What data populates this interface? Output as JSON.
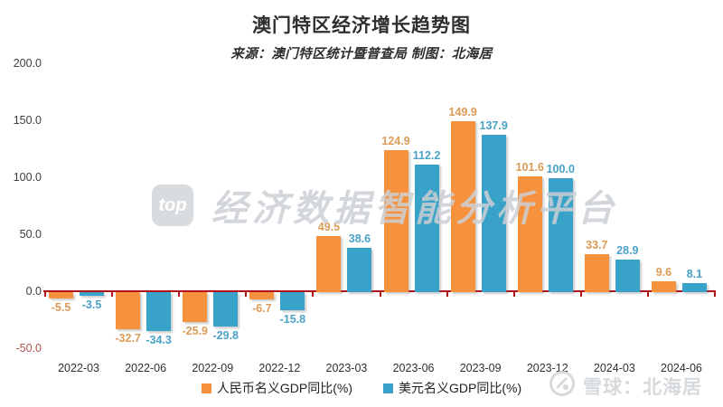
{
  "header": {
    "title": "澳门特区经济增长趋势图",
    "subtitle": "来源：澳门特区统计暨普查局 制图：北海居"
  },
  "chart_data": {
    "type": "bar",
    "title": "澳门特区经济增长趋势图",
    "subtitle": "来源：澳门特区统计暨普查局 制图：北海居",
    "categories": [
      "2022-03",
      "2022-06",
      "2022-09",
      "2022-12",
      "2023-03",
      "2023-06",
      "2023-09",
      "2023-12",
      "2024-03",
      "2024-06"
    ],
    "series": [
      {
        "name": "人民币名义GDP同比(%)",
        "color": "#f6913d",
        "label_color": "#db9b57",
        "values": [
          -5.5,
          -32.7,
          -25.9,
          -6.7,
          49.5,
          124.9,
          149.9,
          101.6,
          33.7,
          9.6
        ]
      },
      {
        "name": "美元名义GDP同比(%)",
        "color": "#38a2c8",
        "label_color": "#4ba2c6",
        "values": [
          -3.5,
          -34.3,
          -29.8,
          -15.8,
          38.6,
          112.2,
          137.9,
          100.0,
          28.9,
          8.1
        ]
      }
    ],
    "y_ticks": [
      200.0,
      150.0,
      100.0,
      50.0,
      0.0,
      -50.0
    ],
    "ylim": [
      -50,
      200
    ],
    "xlabel": "",
    "ylabel": "",
    "grid": false,
    "legend_position": "bottom",
    "axis_line_color": "#b11218",
    "negative_tick_color": "#b35250"
  },
  "watermarks": {
    "center_logo_text": "top",
    "center_text": "经济数据智能分析平台",
    "bottom_right_text": "雪球：北海居"
  }
}
